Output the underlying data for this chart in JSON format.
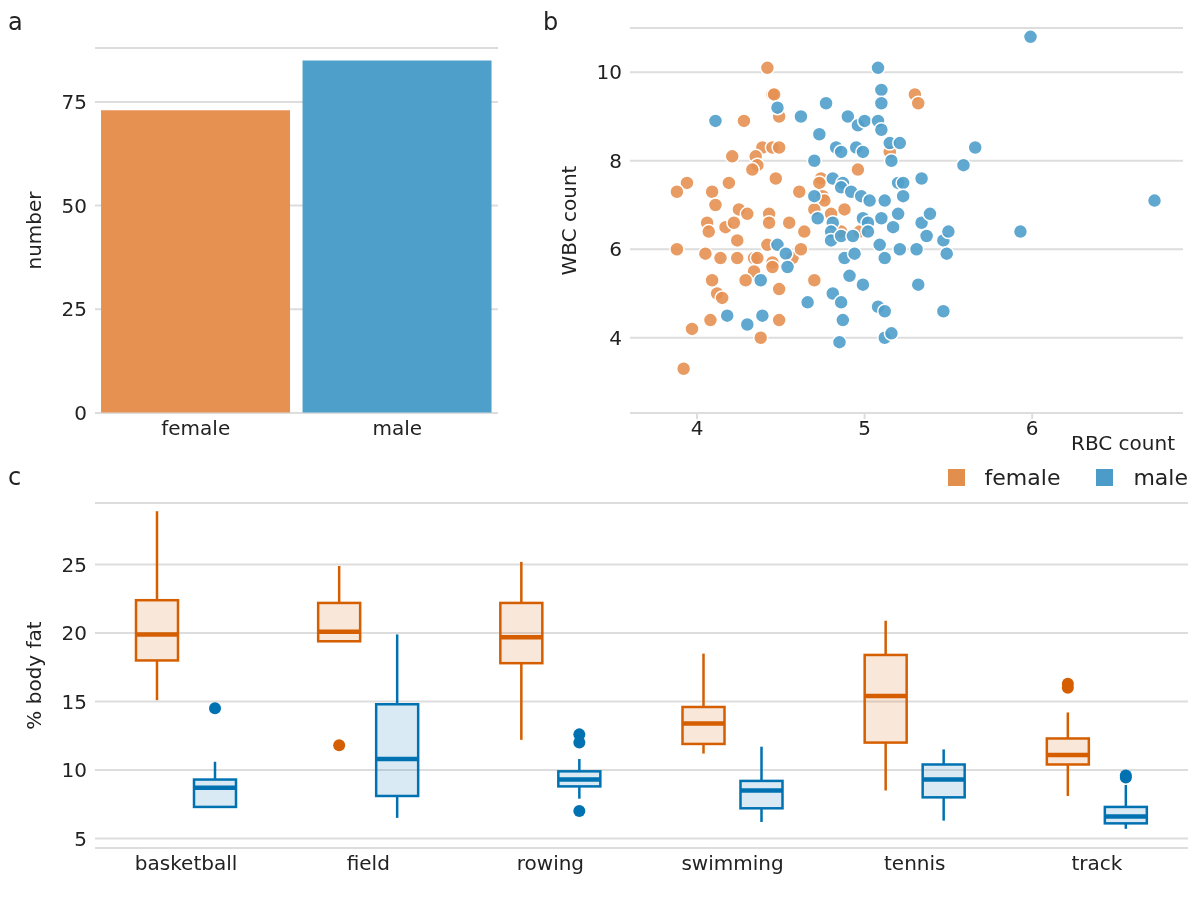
{
  "chart_data": [
    {
      "type": "bar",
      "title": "a",
      "categories": [
        "female",
        "male"
      ],
      "values": [
        73,
        85
      ],
      "colors": [
        "#e69152",
        "#4f9fcb"
      ],
      "ylabel": "number",
      "ylim": [
        0,
        88
      ],
      "yticks": [
        0,
        25,
        50,
        75
      ],
      "grid": "y"
    },
    {
      "type": "scatter",
      "title": "b",
      "xlabel": "RBC count",
      "ylabel": "WBC count",
      "xlim": [
        3.6,
        6.9
      ],
      "xticks": [
        4,
        5,
        6
      ],
      "ylim": [
        2.3,
        11
      ],
      "yticks": [
        4,
        6,
        8,
        10
      ],
      "grid": "y",
      "marker": "circle",
      "series": [
        {
          "color": "#e69152",
          "x": [
            4.42,
            4.45,
            4.46,
            4.49,
            4.28,
            5.3,
            5.32,
            4.39,
            4.45,
            4.49,
            4.21,
            4.35,
            4.36,
            4.33,
            4.47,
            4.96,
            5.15,
            3.94,
            3.88,
            4.09,
            4.19,
            4.61,
            4.11,
            4.25,
            4.3,
            4.43,
            4.43,
            4.55,
            4.74,
            4.73,
            4.75,
            4.76,
            4.7,
            4.8,
            4.88,
            4.06,
            4.07,
            4.17,
            4.22,
            4.64,
            4.24,
            4.86,
            4.97,
            3.88,
            4.05,
            4.14,
            4.24,
            4.34,
            4.36,
            4.42,
            4.45,
            4.45,
            4.57,
            4.62,
            4.34,
            4.29,
            4.7,
            4.09,
            4.12,
            4.15,
            4.49,
            4.08,
            3.97,
            4.49,
            4.38,
            3.92
          ],
          "values": [
            10.1,
            9.5,
            9.5,
            9.0,
            8.9,
            9.5,
            9.3,
            8.3,
            8.3,
            8.3,
            8.1,
            8.1,
            7.9,
            7.8,
            7.6,
            7.8,
            8.2,
            7.5,
            7.3,
            7.3,
            7.5,
            7.3,
            7.0,
            6.9,
            6.8,
            6.8,
            6.6,
            6.6,
            7.6,
            7.5,
            7.2,
            7.1,
            6.9,
            6.8,
            6.9,
            6.6,
            6.4,
            6.5,
            6.6,
            6.4,
            6.2,
            6.4,
            6.4,
            6.0,
            5.9,
            5.8,
            5.8,
            5.8,
            5.8,
            6.1,
            5.7,
            5.6,
            5.8,
            6.0,
            5.5,
            5.3,
            5.3,
            5.3,
            5.0,
            4.9,
            5.1,
            4.4,
            4.2,
            4.4,
            4.0,
            3.3
          ]
        },
        {
          "color": "#4f9fcb",
          "x": [
            5.08,
            5.1,
            5.1,
            4.77,
            4.48,
            4.11,
            4.62,
            4.9,
            4.96,
            5.0,
            5.08,
            5.1,
            4.73,
            4.83,
            4.86,
            4.95,
            4.99,
            5.15,
            5.21,
            5.16,
            4.7,
            4.81,
            4.87,
            4.86,
            4.92,
            4.98,
            5.03,
            4.7,
            4.72,
            4.81,
            4.8,
            4.8,
            4.86,
            4.93,
            4.99,
            5.02,
            5.02,
            5.12,
            5.2,
            5.23,
            5.23,
            5.34,
            5.1,
            5.17,
            5.2,
            5.34,
            5.09,
            5.12,
            5.21,
            5.31,
            4.88,
            4.94,
            4.91,
            4.99,
            5.32,
            4.48,
            4.53,
            4.54,
            4.38,
            4.66,
            4.81,
            4.86,
            5.08,
            5.12,
            4.87,
            4.18,
            4.3,
            4.39,
            4.85,
            5.12,
            5.16,
            5.99,
            5.66,
            5.59,
            6.73,
            5.93,
            5.39,
            5.37,
            5.47,
            5.5,
            5.49,
            5.47
          ],
          "values": [
            10.1,
            9.6,
            9.3,
            9.3,
            9.2,
            8.9,
            9.0,
            9.0,
            8.8,
            8.9,
            8.9,
            8.7,
            8.6,
            8.3,
            8.2,
            8.3,
            8.2,
            8.4,
            8.4,
            8.0,
            8.0,
            7.6,
            7.5,
            7.4,
            7.3,
            7.2,
            7.1,
            7.2,
            6.7,
            6.6,
            6.4,
            6.2,
            6.3,
            6.3,
            6.7,
            6.6,
            6.4,
            7.1,
            7.5,
            7.5,
            7.2,
            7.6,
            6.7,
            6.5,
            6.8,
            6.6,
            6.1,
            5.8,
            6.0,
            6.0,
            5.8,
            5.9,
            5.4,
            5.2,
            5.2,
            6.1,
            5.9,
            5.6,
            5.3,
            4.8,
            5.0,
            4.8,
            4.7,
            4.6,
            4.4,
            4.5,
            4.3,
            4.5,
            3.9,
            4.0,
            4.1,
            10.8,
            8.3,
            7.9,
            7.1,
            6.4,
            6.8,
            6.3,
            6.2,
            6.4,
            5.9,
            4.6
          ]
        }
      ]
    },
    {
      "type": "box",
      "title": "c",
      "ylabel": "% body fat",
      "categories": [
        "basketball",
        "field",
        "rowing",
        "swimming",
        "tennis",
        "track"
      ],
      "ylim": [
        4.3,
        29.5
      ],
      "yticks": [
        5,
        10,
        15,
        20,
        25
      ],
      "grid": "y",
      "legend": "top right",
      "series": [
        {
          "name": "female",
          "color": "#d55e00",
          "boxes": [
            {
              "low": 15.1,
              "q1": 18.0,
              "median": 19.9,
              "q3": 22.4,
              "high": 28.9
            },
            {
              "low": 19.4,
              "q1": 19.4,
              "median": 20.1,
              "q3": 22.2,
              "high": 24.9,
              "outliers": [
                11.8
              ]
            },
            {
              "low": 12.2,
              "q1": 17.8,
              "median": 19.7,
              "q3": 22.2,
              "high": 25.2
            },
            {
              "low": 11.2,
              "q1": 11.9,
              "median": 13.4,
              "q3": 14.6,
              "high": 18.5
            },
            {
              "low": 8.5,
              "q1": 12.0,
              "median": 15.4,
              "q3": 18.4,
              "high": 20.9
            },
            {
              "low": 8.1,
              "q1": 10.4,
              "median": 11.1,
              "q3": 12.3,
              "high": 14.2,
              "outliers": [
                16.3,
                16.0
              ]
            }
          ]
        },
        {
          "name": "male",
          "color": "#0072b2",
          "boxes": [
            {
              "low": 7.3,
              "q1": 7.3,
              "median": 8.7,
              "q3": 9.3,
              "high": 10.6,
              "outliers": [
                14.5
              ]
            },
            {
              "low": 6.5,
              "q1": 8.1,
              "median": 10.8,
              "q3": 14.8,
              "high": 19.9
            },
            {
              "low": 7.9,
              "q1": 8.8,
              "median": 9.3,
              "q3": 9.9,
              "high": 10.8,
              "outliers": [
                12.6,
                12.0,
                7.0
              ]
            },
            {
              "low": 6.2,
              "q1": 7.2,
              "median": 8.5,
              "q3": 9.2,
              "high": 11.7
            },
            {
              "low": 6.3,
              "q1": 8.0,
              "median": 9.3,
              "q3": 10.4,
              "high": 11.5
            },
            {
              "low": 5.7,
              "q1": 6.1,
              "median": 6.6,
              "q3": 7.3,
              "high": 8.9,
              "outliers": [
                9.6,
                9.45
              ]
            }
          ]
        }
      ]
    }
  ]
}
